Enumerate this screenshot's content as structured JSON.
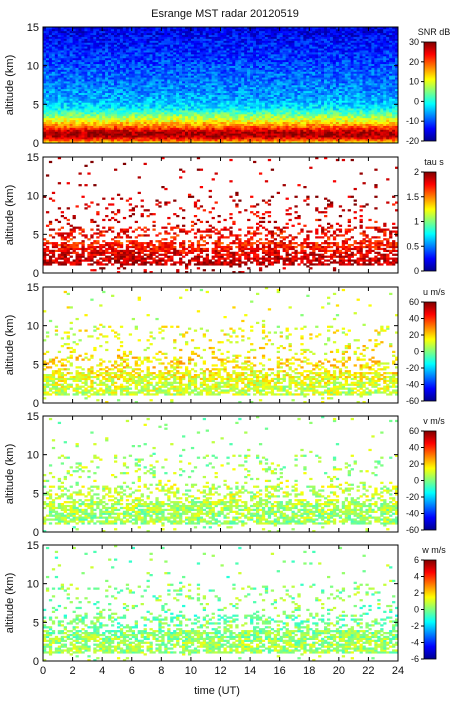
{
  "figure": {
    "title": "Esrange MST radar 20120519",
    "xlabel": "time (UT)"
  },
  "chart_data": [
    {
      "type": "heatmap",
      "name": "snr",
      "ylabel": "altitude (km)",
      "colorbar_label": "SNR dB",
      "colorbar_ticks": [
        "30",
        "20",
        "10",
        "0",
        "-10",
        "-20"
      ],
      "clim": [
        -20,
        30
      ],
      "xlim": [
        0,
        24
      ],
      "ylim": [
        0,
        15
      ],
      "x_ticks": [
        "0",
        "2",
        "4",
        "6",
        "8",
        "10",
        "12",
        "14",
        "16",
        "18",
        "20",
        "22",
        "24"
      ],
      "y_ticks": [
        "0",
        "5",
        "10",
        "15"
      ],
      "x_ticks_shown": false,
      "colormap": "jet",
      "profile": [
        [
          0.0,
          10
        ],
        [
          0.5,
          22
        ],
        [
          1.0,
          29
        ],
        [
          1.5,
          27
        ],
        [
          2.0,
          20
        ],
        [
          2.5,
          15
        ],
        [
          3.0,
          10
        ],
        [
          3.5,
          6
        ],
        [
          4.0,
          2
        ],
        [
          4.5,
          -2
        ],
        [
          5.5,
          -5
        ],
        [
          7.0,
          -7
        ],
        [
          9.0,
          -9
        ],
        [
          12.0,
          -12
        ],
        [
          15.0,
          -15
        ]
      ]
    },
    {
      "type": "heatmap",
      "name": "tau",
      "ylabel": "altitude (km)",
      "colorbar_label": "tau s",
      "colorbar_ticks": [
        "2",
        "1.5",
        "1",
        "0.5",
        "0"
      ],
      "clim": [
        0,
        2
      ],
      "xlim": [
        0,
        24
      ],
      "ylim": [
        0,
        15
      ],
      "x_ticks": [
        "0",
        "2",
        "4",
        "6",
        "8",
        "10",
        "12",
        "14",
        "16",
        "18",
        "20",
        "22",
        "24"
      ],
      "y_ticks": [
        "0",
        "5",
        "10",
        "15"
      ],
      "x_ticks_shown": false,
      "colormap": "jet",
      "profile": [
        [
          1.0,
          1.9
        ],
        [
          2.5,
          1.8
        ],
        [
          4.0,
          1.7
        ],
        [
          5.0,
          1.75
        ],
        [
          7.0,
          1.8
        ],
        [
          9.0,
          1.85
        ],
        [
          11.0,
          1.9
        ]
      ]
    },
    {
      "type": "heatmap",
      "name": "u",
      "ylabel": "altitude (km)",
      "colorbar_label": "u m/s",
      "colorbar_ticks": [
        "60",
        "40",
        "20",
        "0",
        "-20",
        "-40",
        "-60"
      ],
      "clim": [
        -60,
        60
      ],
      "xlim": [
        0,
        24
      ],
      "ylim": [
        0,
        15
      ],
      "x_ticks": [
        "0",
        "2",
        "4",
        "6",
        "8",
        "10",
        "12",
        "14",
        "16",
        "18",
        "20",
        "22",
        "24"
      ],
      "y_ticks": [
        "0",
        "5",
        "10",
        "15"
      ],
      "x_ticks_shown": false,
      "colormap": "jet",
      "profile": [
        [
          1.5,
          8
        ],
        [
          3.0,
          12
        ],
        [
          5.0,
          18
        ],
        [
          7.0,
          15
        ],
        [
          9.0,
          12
        ],
        [
          11.0,
          10
        ]
      ]
    },
    {
      "type": "heatmap",
      "name": "v",
      "ylabel": "altitude (km)",
      "colorbar_label": "v m/s",
      "colorbar_ticks": [
        "60",
        "40",
        "20",
        "0",
        "-20",
        "-40",
        "-60"
      ],
      "clim": [
        -60,
        60
      ],
      "xlim": [
        0,
        24
      ],
      "ylim": [
        0,
        15
      ],
      "x_ticks": [
        "0",
        "2",
        "4",
        "6",
        "8",
        "10",
        "12",
        "14",
        "16",
        "18",
        "20",
        "22",
        "24"
      ],
      "y_ticks": [
        "0",
        "5",
        "10",
        "15"
      ],
      "x_ticks_shown": false,
      "colormap": "jet",
      "profile": [
        [
          1.5,
          3
        ],
        [
          3.0,
          5
        ],
        [
          5.0,
          8
        ],
        [
          7.0,
          6
        ],
        [
          9.0,
          4
        ],
        [
          11.0,
          3
        ]
      ]
    },
    {
      "type": "heatmap",
      "name": "w",
      "ylabel": "altitude (km)",
      "colorbar_label": "w m/s",
      "colorbar_ticks": [
        "6",
        "4",
        "2",
        "0",
        "-2",
        "-4",
        "-6"
      ],
      "clim": [
        -6,
        6
      ],
      "xlim": [
        0,
        24
      ],
      "ylim": [
        0,
        15
      ],
      "x_ticks": [
        "0",
        "2",
        "4",
        "6",
        "8",
        "10",
        "12",
        "14",
        "16",
        "18",
        "20",
        "22",
        "24"
      ],
      "y_ticks": [
        "0",
        "5",
        "10",
        "15"
      ],
      "x_ticks_shown": true,
      "colormap": "jet",
      "profile": [
        [
          1.0,
          0.3
        ],
        [
          2.0,
          0.5
        ],
        [
          3.0,
          0.2
        ],
        [
          4.0,
          0.0
        ],
        [
          6.0,
          -0.2
        ],
        [
          8.0,
          0.1
        ],
        [
          10.0,
          0.0
        ]
      ]
    }
  ]
}
